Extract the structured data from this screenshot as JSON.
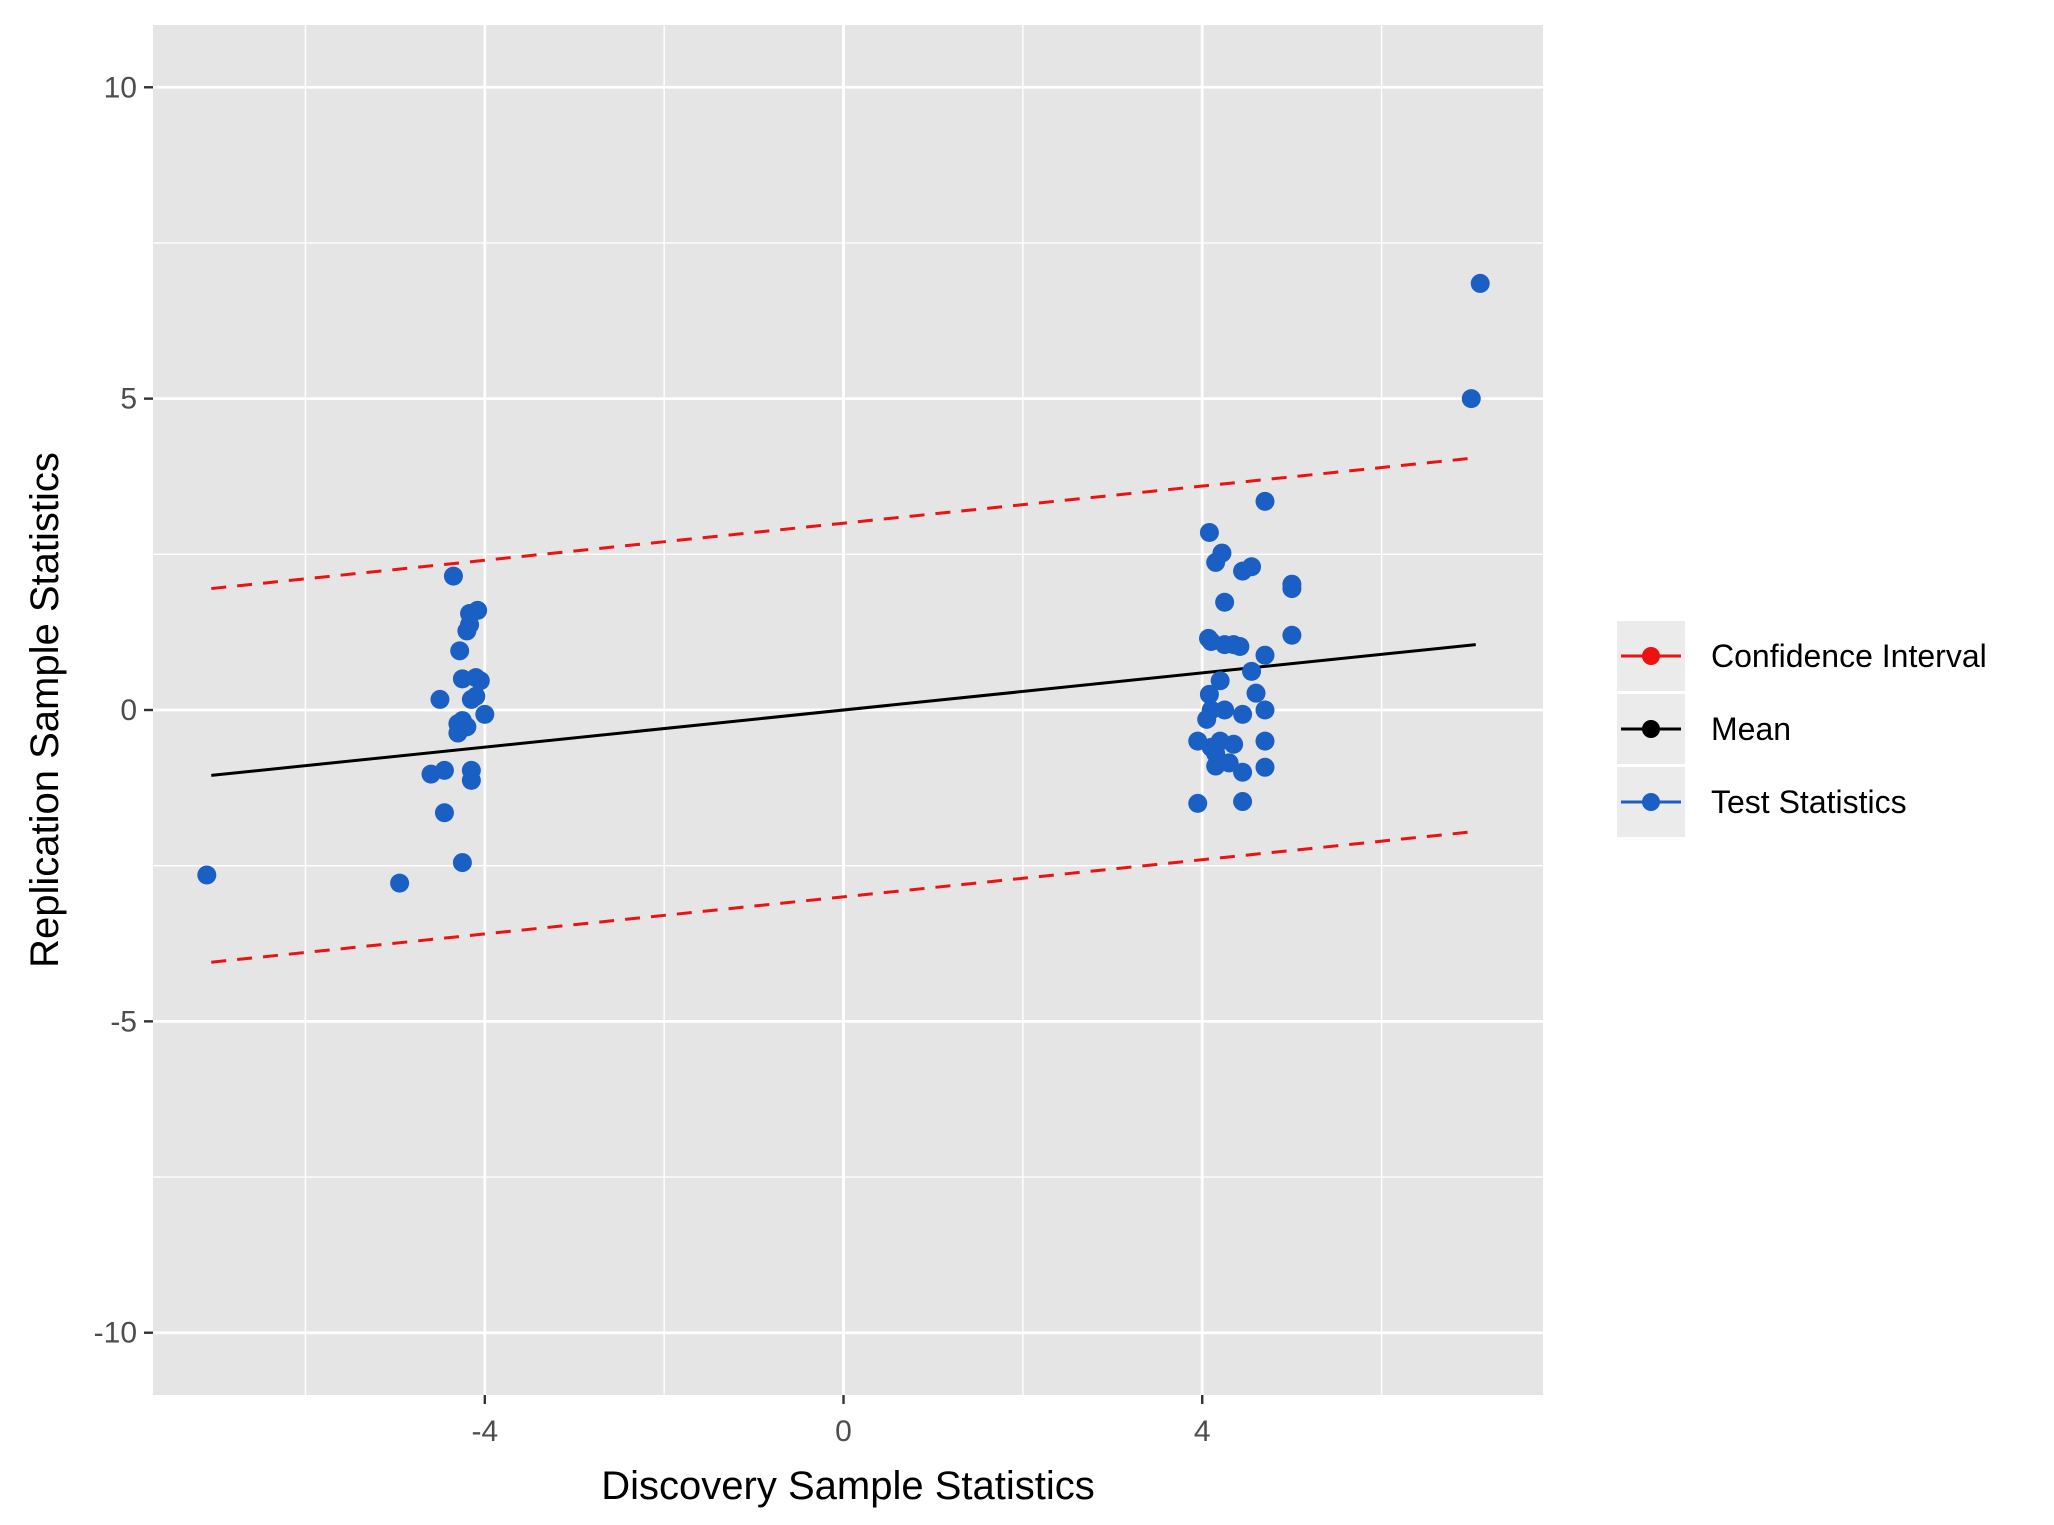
{
  "chart_data": {
    "type": "scatter",
    "title": "",
    "xlabel": "Discovery Sample Statistics",
    "ylabel": "Replication Sample Statistics",
    "xlim": [
      -7.7,
      7.8
    ],
    "ylim": [
      -11.0,
      11.0
    ],
    "x_ticks": [
      -4,
      0,
      4
    ],
    "x_tick_labels": [
      "-4",
      "0",
      "4"
    ],
    "x_minor_ticks": [
      -6,
      -2,
      2,
      6
    ],
    "y_ticks": [
      -10,
      -5,
      0,
      5,
      10
    ],
    "y_tick_labels": [
      "-10",
      "-5",
      "0",
      "5",
      "10"
    ],
    "y_minor_ticks": [
      -7.5,
      -2.5,
      2.5,
      7.5
    ],
    "grid": true,
    "legend_position": "right",
    "colors": {
      "panel_bg": "#e5e5e5",
      "grid": "#ffffff",
      "legend_key_bg": "#ebebeb",
      "confidence_interval": "#ee1111",
      "mean": "#000000",
      "test_statistics": "#1a5fc4",
      "axis_text": "#4d4d4d",
      "title_text": "#000000"
    },
    "legend": [
      {
        "label": "Confidence Interval",
        "color": "#ee1111"
      },
      {
        "label": "Mean",
        "color": "#000000"
      },
      {
        "label": "Test Statistics",
        "color": "#1a5fc4"
      }
    ],
    "lines": [
      {
        "name": "Confidence Interval",
        "style": "dashed",
        "color": "#ee1111",
        "points": [
          [
            -7.05,
            1.95
          ],
          [
            7.05,
            4.05
          ]
        ]
      },
      {
        "name": "Confidence Interval",
        "style": "dashed",
        "color": "#ee1111",
        "points": [
          [
            -7.05,
            -4.05
          ],
          [
            7.05,
            -1.95
          ]
        ]
      },
      {
        "name": "Mean",
        "style": "solid",
        "color": "#000000",
        "points": [
          [
            -7.05,
            -1.05
          ],
          [
            7.05,
            1.05
          ]
        ]
      }
    ],
    "series": [
      {
        "name": "Test Statistics",
        "color": "#1a5fc4",
        "points": [
          [
            -7.1,
            -2.65
          ],
          [
            -4.95,
            -2.78
          ],
          [
            -4.25,
            -2.45
          ],
          [
            -4.45,
            -1.65
          ],
          [
            -4.15,
            -1.13
          ],
          [
            -4.15,
            -0.97
          ],
          [
            -4.6,
            -1.03
          ],
          [
            -4.45,
            -0.97
          ],
          [
            -4.3,
            -0.37
          ],
          [
            -4.3,
            -0.22
          ],
          [
            -4.25,
            -0.17
          ],
          [
            -4.2,
            -0.27
          ],
          [
            -4.0,
            -0.07
          ],
          [
            -4.5,
            0.17
          ],
          [
            -4.15,
            0.17
          ],
          [
            -4.1,
            0.22
          ],
          [
            -4.25,
            0.5
          ],
          [
            -4.1,
            0.52
          ],
          [
            -4.05,
            0.47
          ],
          [
            -4.28,
            0.95
          ],
          [
            -4.2,
            1.27
          ],
          [
            -4.17,
            1.37
          ],
          [
            -4.17,
            1.55
          ],
          [
            -4.08,
            1.6
          ],
          [
            -4.35,
            2.15
          ],
          [
            3.95,
            -1.5
          ],
          [
            4.45,
            -1.47
          ],
          [
            3.95,
            -0.5
          ],
          [
            4.1,
            -0.6
          ],
          [
            4.15,
            -0.7
          ],
          [
            4.15,
            -0.9
          ],
          [
            4.2,
            -0.5
          ],
          [
            4.3,
            -0.85
          ],
          [
            4.35,
            -0.55
          ],
          [
            4.45,
            -1.0
          ],
          [
            4.7,
            -0.92
          ],
          [
            4.7,
            -0.5
          ],
          [
            4.05,
            -0.15
          ],
          [
            4.1,
            0.0
          ],
          [
            4.08,
            0.25
          ],
          [
            4.25,
            0.0
          ],
          [
            4.45,
            -0.07
          ],
          [
            4.7,
            0.0
          ],
          [
            4.6,
            0.27
          ],
          [
            4.2,
            0.47
          ],
          [
            4.55,
            0.62
          ],
          [
            4.7,
            0.88
          ],
          [
            4.07,
            1.15
          ],
          [
            4.1,
            1.1
          ],
          [
            4.25,
            1.05
          ],
          [
            4.35,
            1.05
          ],
          [
            4.42,
            1.02
          ],
          [
            4.25,
            1.73
          ],
          [
            5.0,
            1.2
          ],
          [
            5.0,
            1.95
          ],
          [
            5.0,
            2.02
          ],
          [
            4.45,
            2.23
          ],
          [
            4.55,
            2.3
          ],
          [
            4.15,
            2.37
          ],
          [
            4.22,
            2.52
          ],
          [
            4.08,
            2.85
          ],
          [
            4.7,
            3.35
          ],
          [
            7.0,
            5.0
          ],
          [
            7.1,
            6.85
          ]
        ]
      }
    ]
  }
}
